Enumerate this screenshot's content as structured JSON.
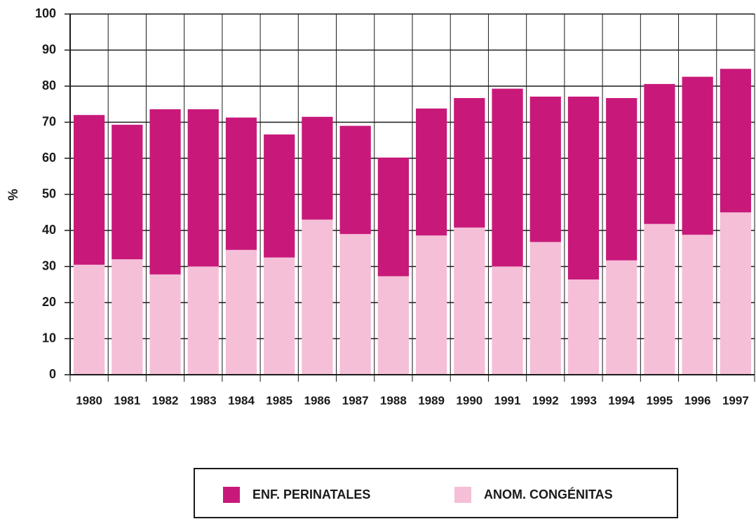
{
  "chart_data": {
    "type": "stacked-bar",
    "y_label": "%",
    "categories": [
      "1980",
      "1981",
      "1982",
      "1983",
      "1984",
      "1985",
      "1986",
      "1987",
      "1988",
      "1989",
      "1990",
      "1991",
      "1992",
      "1993",
      "1994",
      "1995",
      "1996",
      "1997"
    ],
    "series": [
      {
        "name": "ENF. PERINATALES",
        "color": "#c8197a",
        "values": [
          41.5,
          37.3,
          45.8,
          43.6,
          36.7,
          34.1,
          28.5,
          30,
          32.9,
          35.2,
          35.9,
          49.3,
          40.3,
          50.7,
          45,
          38.8,
          43.8,
          39.8
        ]
      },
      {
        "name": "ANOM. CONGÉNITAS",
        "color": "#f5bfd8",
        "values": [
          30.5,
          32,
          27.8,
          30,
          34.6,
          32.5,
          43,
          39,
          27.3,
          38.6,
          40.8,
          30,
          36.8,
          26.4,
          31.7,
          41.8,
          38.8,
          45
        ]
      }
    ],
    "ylim": [
      0,
      100
    ],
    "yticks": [
      0,
      10,
      20,
      30,
      40,
      50,
      60,
      70,
      80,
      90,
      100
    ],
    "grid": true
  }
}
